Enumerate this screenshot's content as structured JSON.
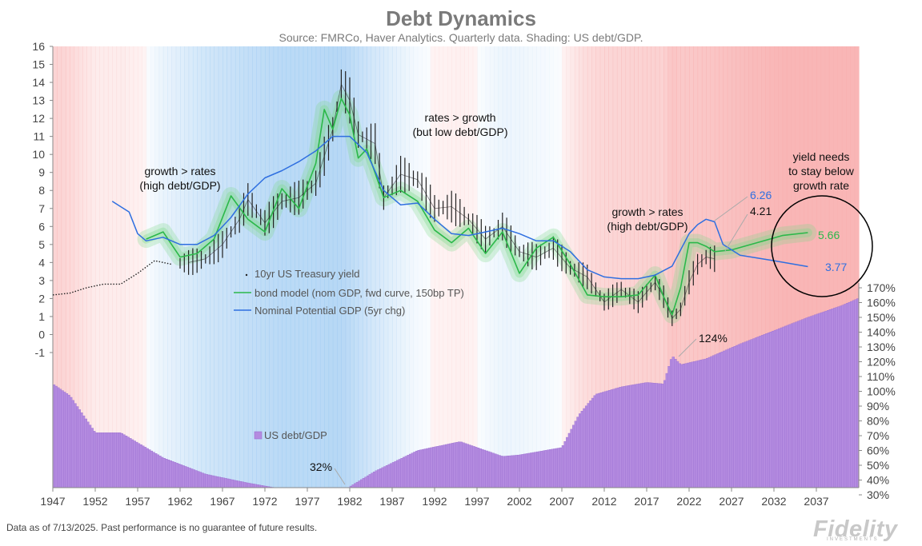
{
  "header": {
    "title": "Debt Dynamics",
    "subtitle": "Source: FMRCo, Haver Analytics.  Quarterly data.  Shading: US debt/GDP."
  },
  "footer": {
    "note": "Data as of 7/13/2025. Past performance is no guarantee of future results.",
    "logo": "Fidelity",
    "logo_sub": "INVESTMENTS"
  },
  "colors": {
    "yield": "#222222",
    "model": "#2bb84a",
    "model_glow": "#7fd98a",
    "nominal_gdp": "#2f6fe0",
    "debt_bar": "#b48be0",
    "debt_bar_edge": "#9a6fd0",
    "shade_high_debt": "#f8b0b0",
    "shade_low_debt": "#9fcbf2",
    "circle": "#000000"
  },
  "annotations": {
    "growth_rates_1": "growth > rates",
    "growth_rates_1_sub": "(high debt/GDP)",
    "rates_growth": "rates > growth",
    "rates_growth_sub": "(but low debt/GDP)",
    "growth_rates_2": "growth > rates",
    "growth_rates_2_sub": "(high debt/GDP)",
    "yield_needs_1": "yield needs",
    "yield_needs_2": "to stay below",
    "yield_needs_3": "growth rate",
    "val_626": "6.26",
    "val_421": "4.21",
    "val_566": "5.66",
    "val_377": "3.77",
    "debt_124": "124%",
    "debt_32": "32%"
  },
  "legend": {
    "yield": "10yr US Treasury yield",
    "model": "bond model (nom GDP, fwd curve, 150bp TP)",
    "nominal": "Nominal Potential GDP (5yr chg)",
    "debt": "US debt/GDP"
  },
  "chart_data": {
    "type": "line",
    "x_ticks": [
      "1947",
      "1952",
      "1957",
      "1962",
      "1967",
      "1972",
      "1977",
      "1982",
      "1987",
      "1992",
      "1997",
      "2002",
      "2007",
      "2012",
      "2017",
      "2022",
      "2027",
      "2032",
      "2037"
    ],
    "x_range": [
      1947,
      2042
    ],
    "y_left_ticks": [
      "16",
      "15",
      "14",
      "13",
      "12",
      "11",
      "10",
      "9",
      "8",
      "7",
      "6",
      "5",
      "4",
      "3",
      "2",
      "1",
      "0",
      "-1"
    ],
    "y_left_range": [
      -1,
      16
    ],
    "y_right_ticks": [
      "170%",
      "160%",
      "150%",
      "140%",
      "130%",
      "120%",
      "110%",
      "100%",
      "90%",
      "80%",
      "70%",
      "60%",
      "50%",
      "40%",
      "30%"
    ],
    "y_right_range": [
      30,
      170
    ],
    "series": [
      {
        "name": "10yr US Treasury yield",
        "x": [
          1947,
          1949,
          1951,
          1953,
          1955,
          1957,
          1959,
          1961,
          1963,
          1965,
          1967,
          1969,
          1970,
          1972,
          1974,
          1976,
          1978,
          1980,
          1981,
          1982,
          1983,
          1985,
          1986,
          1988,
          1990,
          1992,
          1994,
          1996,
          1998,
          2000,
          2002,
          2004,
          2006,
          2008,
          2010,
          2012,
          2014,
          2016,
          2018,
          2019,
          2020,
          2021,
          2022,
          2023,
          2024,
          2025
        ],
        "values": [
          2.2,
          2.3,
          2.6,
          2.8,
          2.8,
          3.4,
          4.1,
          3.9,
          4.0,
          4.2,
          5.0,
          6.4,
          7.5,
          6.2,
          7.4,
          7.6,
          8.4,
          11.4,
          13.9,
          13.0,
          11.1,
          10.6,
          7.6,
          8.9,
          8.6,
          7.0,
          7.1,
          6.4,
          5.3,
          6.0,
          4.6,
          4.3,
          4.8,
          3.7,
          3.2,
          1.8,
          2.5,
          1.8,
          2.9,
          2.1,
          0.9,
          1.4,
          2.9,
          3.9,
          4.3,
          4.21
        ]
      },
      {
        "name": "bond model (nom GDP, fwd curve, 150bp TP)",
        "x": [
          1958,
          1960,
          1962,
          1964,
          1966,
          1968,
          1970,
          1972,
          1974,
          1976,
          1978,
          1979,
          1980,
          1981,
          1982,
          1983,
          1984,
          1986,
          1988,
          1990,
          1992,
          1994,
          1996,
          1998,
          2000,
          2002,
          2004,
          2006,
          2008,
          2010,
          2012,
          2014,
          2016,
          2018,
          2019,
          2020,
          2021,
          2022,
          2023,
          2024,
          2025,
          2027,
          2030,
          2033,
          2036
        ],
        "values": [
          5.3,
          5.7,
          4.3,
          4.5,
          5.3,
          7.7,
          6.4,
          5.7,
          8.1,
          7.0,
          9.5,
          12.5,
          11.4,
          13.1,
          12.2,
          9.8,
          10.3,
          7.6,
          8.0,
          7.4,
          5.8,
          5.1,
          5.9,
          4.5,
          5.7,
          3.4,
          4.8,
          5.4,
          3.9,
          2.2,
          2.1,
          2.1,
          2.2,
          3.3,
          2.1,
          1.1,
          2.6,
          5.1,
          5.1,
          4.9,
          4.6,
          4.7,
          5.1,
          5.5,
          5.66
        ]
      },
      {
        "name": "Nominal Potential GDP (5yr chg)",
        "x": [
          1954,
          1956,
          1957,
          1958,
          1960,
          1962,
          1964,
          1966,
          1968,
          1970,
          1972,
          1974,
          1976,
          1978,
          1980,
          1982,
          1984,
          1986,
          1988,
          1990,
          1992,
          1994,
          1996,
          1998,
          2000,
          2002,
          2004,
          2006,
          2008,
          2010,
          2012,
          2014,
          2016,
          2018,
          2020,
          2022,
          2023,
          2024,
          2025,
          2026,
          2028,
          2032,
          2036
        ],
        "values": [
          7.4,
          6.8,
          5.6,
          5.2,
          5.4,
          5.0,
          5.0,
          5.5,
          6.5,
          7.8,
          8.7,
          9.1,
          9.6,
          10.2,
          11.0,
          11.0,
          10.1,
          8.0,
          7.2,
          7.3,
          6.4,
          5.6,
          5.5,
          5.7,
          5.9,
          5.6,
          5.2,
          5.2,
          4.6,
          3.6,
          3.2,
          3.1,
          3.1,
          3.3,
          3.8,
          5.6,
          6.1,
          6.4,
          6.26,
          5.0,
          4.4,
          4.1,
          3.77
        ]
      },
      {
        "name": "US debt/GDP",
        "x": [
          1947,
          1949,
          1952,
          1955,
          1960,
          1965,
          1970,
          1974,
          1978,
          1981,
          1985,
          1990,
          1995,
          2000,
          2002,
          2007,
          2009,
          2011,
          2014,
          2017,
          2019,
          2020,
          2021,
          2024,
          2028,
          2032,
          2036,
          2040,
          2042
        ],
        "values": [
          105,
          97,
          72,
          72,
          55,
          44,
          38,
          34,
          34,
          32,
          46,
          60,
          66,
          56,
          57,
          62,
          84,
          98,
          103,
          106,
          105,
          124,
          118,
          122,
          132,
          141,
          150,
          158,
          163
        ]
      }
    ]
  }
}
